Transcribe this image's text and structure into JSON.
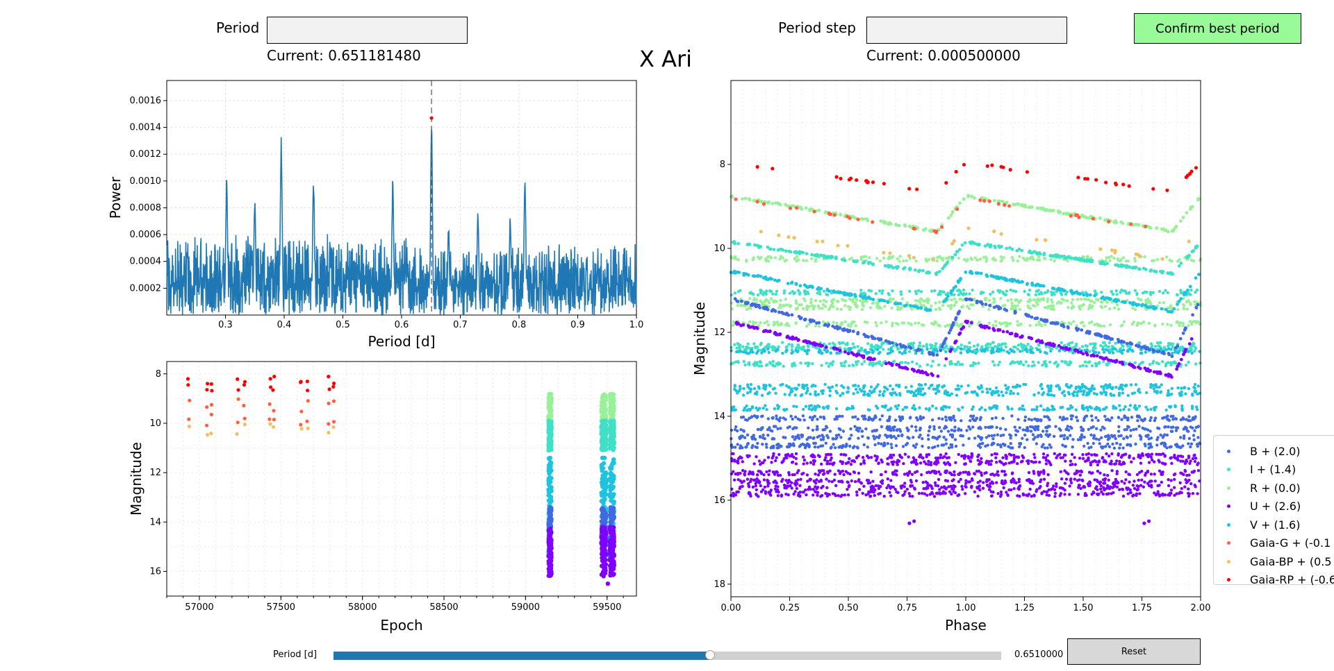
{
  "title": "X Ari",
  "period_box": {
    "label": "Period",
    "value": "",
    "current": "Current: 0.651181480"
  },
  "step_box": {
    "label": "Period step",
    "value": "",
    "current": "Current: 0.000500000"
  },
  "confirm_button": {
    "label": "Confirm best period",
    "color": "#98fb98"
  },
  "reset_button": {
    "label": "Reset"
  },
  "slider": {
    "label": "Period [d]",
    "value_text": "0.6510000",
    "value": 0.651,
    "min": 0.2,
    "max": 1.0
  },
  "periodogram": {
    "xlabel": "Period [d]",
    "ylabel": "Power",
    "xlim": [
      0.2,
      1.0
    ],
    "ylim": [
      0.0,
      0.00175
    ],
    "xticks": [
      "0.3",
      "0.4",
      "0.5",
      "0.6",
      "0.7",
      "0.8",
      "0.9",
      "1.0"
    ],
    "yticks": [
      "0.0002",
      "0.0004",
      "0.0006",
      "0.0008",
      "0.0010",
      "0.0012",
      "0.0014",
      "0.0016"
    ],
    "peak_period": 0.651,
    "peak_power": 0.00147,
    "line_color": "#1f77b4"
  },
  "lightcurve": {
    "xlabel": "Epoch",
    "ylabel": "Magnitude",
    "xlim": [
      56800,
      59680
    ],
    "ylim": [
      17.0,
      7.5
    ],
    "xticks": [
      "57000",
      "57500",
      "58000",
      "58500",
      "59000",
      "59500"
    ],
    "yticks": [
      "8",
      "10",
      "12",
      "14",
      "16"
    ]
  },
  "phaseplot": {
    "xlabel": "Phase",
    "ylabel": "Magnitude",
    "xlim": [
      0.0,
      2.0
    ],
    "ylim": [
      18.3,
      6.0
    ],
    "xticks": [
      "0.00",
      "0.25",
      "0.50",
      "0.75",
      "1.00",
      "1.25",
      "1.50",
      "1.75",
      "2.00"
    ],
    "yticks": [
      "8",
      "10",
      "12",
      "14",
      "16",
      "18"
    ]
  },
  "legend": [
    {
      "label": "B + (2.0)",
      "color": "#4169e1"
    },
    {
      "label": "I + (1.4)",
      "color": "#40e0c8"
    },
    {
      "label": "R + (0.0)",
      "color": "#98f098"
    },
    {
      "label": "U + (2.6)",
      "color": "#8000ff"
    },
    {
      "label": "V + (1.6)",
      "color": "#1ec3e0"
    },
    {
      "label": "Gaia-G + (-0.1",
      "color": "#ff6040"
    },
    {
      "label": "Gaia-BP + (0.5",
      "color": "#f0c060"
    },
    {
      "label": "Gaia-RP + (-0.6",
      "color": "#ff0000"
    }
  ]
}
